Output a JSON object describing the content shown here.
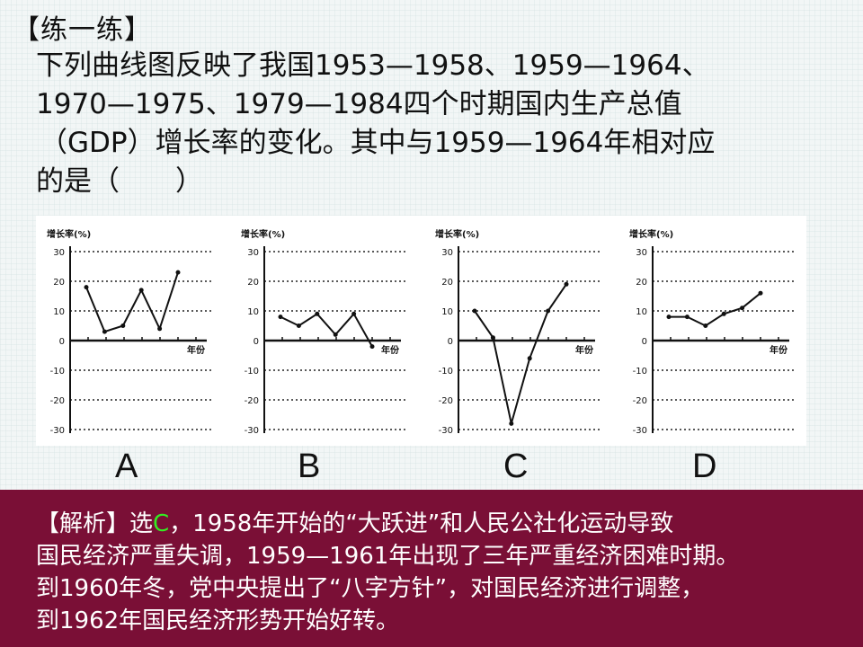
{
  "heading": "【练一练】",
  "question": {
    "lines": [
      "下列曲线图反映了我国1953—1958、1959—1964、",
      "1970—1975、1979—1984四个时期国内生产总值",
      "（GDP）增长率的变化。其中与1959—1964年相对应",
      "的是（　　）"
    ]
  },
  "options": [
    "A",
    "B",
    "C",
    "D"
  ],
  "chart_data": [
    {
      "type": "line",
      "option": "A",
      "ylabel": "增长率(%)",
      "xlabel": "年份",
      "ylim": [
        -30,
        30
      ],
      "yticks": [
        "30",
        "20",
        "10",
        "0",
        "-10",
        "-20",
        "-30"
      ],
      "grid": true,
      "values": [
        18,
        3,
        5,
        17,
        4,
        23
      ]
    },
    {
      "type": "line",
      "option": "B",
      "ylabel": "增长率(%)",
      "xlabel": "年份",
      "ylim": [
        -30,
        30
      ],
      "yticks": [
        "30",
        "20",
        "10",
        "0",
        "-10",
        "-20",
        "-30"
      ],
      "grid": true,
      "values": [
        8,
        5,
        9,
        2,
        9,
        -2
      ]
    },
    {
      "type": "line",
      "option": "C",
      "ylabel": "增长率(%)",
      "xlabel": "年份",
      "ylim": [
        -30,
        30
      ],
      "yticks": [
        "30",
        "20",
        "10",
        "0",
        "-10",
        "-20",
        "-30"
      ],
      "grid": true,
      "values": [
        10,
        1,
        -28,
        -6,
        10,
        19
      ]
    },
    {
      "type": "line",
      "option": "D",
      "ylabel": "增长率(%)",
      "xlabel": "年份",
      "ylim": [
        -30,
        30
      ],
      "yticks": [
        "30",
        "20",
        "10",
        "0",
        "-10",
        "-20",
        "-30"
      ],
      "grid": true,
      "values": [
        8,
        8,
        5,
        9,
        11,
        16
      ]
    }
  ],
  "analysis": {
    "prefix": "【解析】选",
    "answer": "C",
    "line1_rest": "，1958年开始的“大跃进”和人民公社化运动导致",
    "lines": [
      "国民经济严重失调，1959—1961年出现了三年严重经济困难时期。",
      "到1960年冬，党中央提出了“八字方针”，对国民经济进行调整，",
      "到1962年国民经济形势开始好转。"
    ]
  },
  "colors": {
    "analysis_bg": "#7a0f36",
    "answer_highlight": "#33ee22",
    "chart_line": "#111111"
  }
}
